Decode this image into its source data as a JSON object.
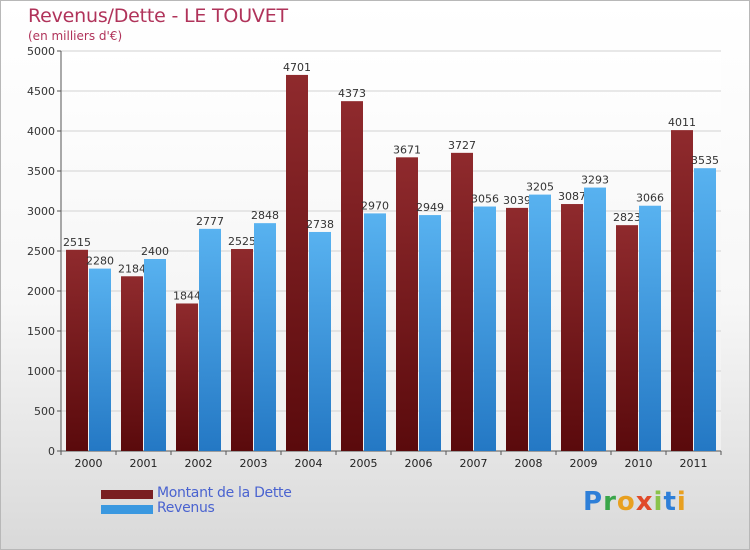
{
  "header": {
    "title": "Revenus/Dette - LE TOUVET",
    "subtitle": "(en milliers d'€)"
  },
  "legend": {
    "items": [
      {
        "label": "Montant de la Dette",
        "color": "#7a1f22"
      },
      {
        "label": "Revenus",
        "color": "#3a98e0"
      }
    ]
  },
  "logo": {
    "text": "Proxiti"
  },
  "chart_data": {
    "type": "bar",
    "categories": [
      "2000",
      "2001",
      "2002",
      "2003",
      "2004",
      "2005",
      "2006",
      "2007",
      "2008",
      "2009",
      "2010",
      "2011"
    ],
    "series": [
      {
        "name": "Montant de la Dette",
        "color": "#7a1f22",
        "values": [
          2515,
          2184,
          1844,
          2525,
          4701,
          4373,
          3671,
          3727,
          3039,
          3087,
          2823,
          4011
        ]
      },
      {
        "name": "Revenus",
        "color": "#3a98e0",
        "values": [
          2280,
          2400,
          2777,
          2848,
          2738,
          2970,
          2949,
          3056,
          3205,
          3293,
          3066,
          3535
        ]
      }
    ],
    "ylim": [
      0,
      5000
    ],
    "yticks": [
      0,
      500,
      1000,
      1500,
      2000,
      2500,
      3000,
      3500,
      4000,
      4500,
      5000
    ],
    "grid": true,
    "legend_position": "bottom-left"
  }
}
